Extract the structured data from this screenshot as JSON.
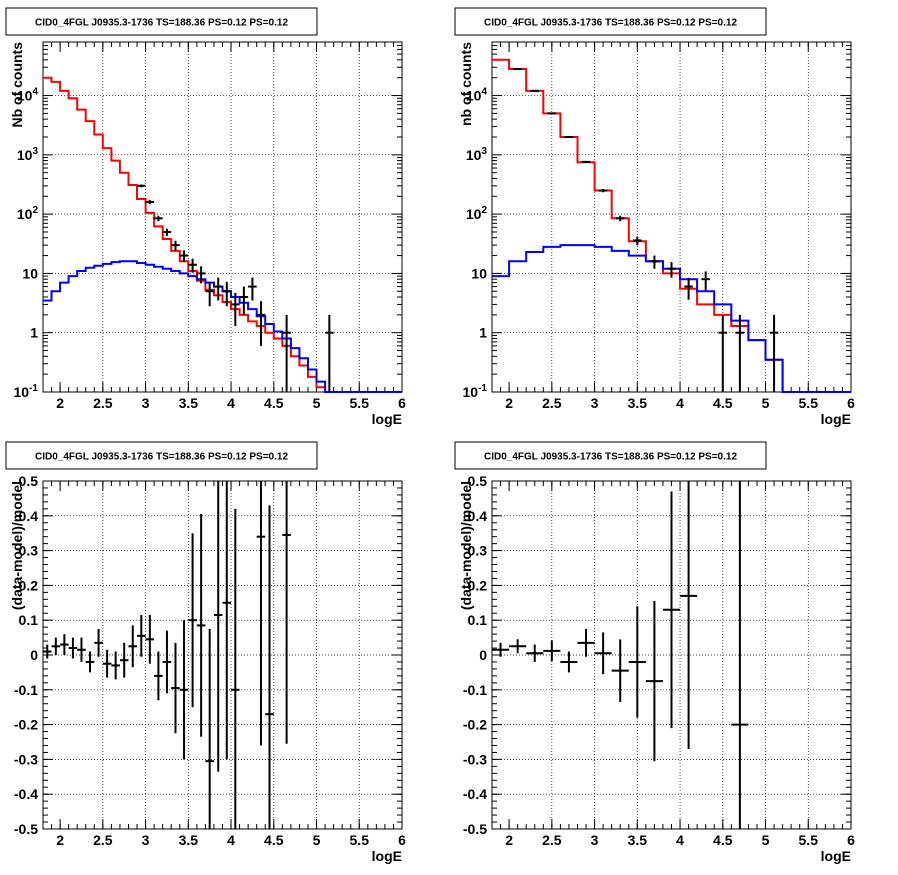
{
  "chart_data": [
    {
      "type": "line",
      "title": "CID0_4FGL J0935.3-1736 TS=188.36 PS=0.12 PS=0.12",
      "xlabel": "logE",
      "ylabel": "Nb of counts",
      "y_scale": "log",
      "xlim": [
        1.8,
        6.0
      ],
      "ylim": [
        0.1,
        80000
      ],
      "grid": true,
      "x_ticks": [
        "2",
        "2.5",
        "3",
        "3.5",
        "4",
        "4.5",
        "5",
        "5.5",
        "6"
      ],
      "y_ticks": [
        "10^{-1}",
        "1",
        "10",
        "10^{2}",
        "10^{3}",
        "10^{4}"
      ],
      "series": [
        {
          "color": "#ff0000",
          "kind": "step",
          "bin_width": 0.1,
          "x": [
            1.8,
            1.9,
            2.0,
            2.1,
            2.2,
            2.3,
            2.4,
            2.5,
            2.6,
            2.7,
            2.8,
            2.9,
            3.0,
            3.1,
            3.2,
            3.3,
            3.4,
            3.5,
            3.6,
            3.7,
            3.8,
            3.9,
            4.0,
            4.1,
            4.2,
            4.3,
            4.4,
            4.5,
            4.6,
            4.7,
            4.8,
            4.9,
            5.0,
            5.1,
            5.2,
            5.3,
            5.4,
            5.5,
            5.6,
            5.7,
            5.8,
            5.9
          ],
          "values": [
            20000,
            17000,
            12000,
            9000,
            5800,
            3700,
            2200,
            1300,
            800,
            500,
            310,
            180,
            105,
            62,
            38,
            24,
            16,
            11,
            7.5,
            5.3,
            4.3,
            3.3,
            2.5,
            2.0,
            1.55,
            1.3,
            1.0,
            0.8,
            0.6,
            0.4,
            0.28,
            0.18,
            0.12,
            0.1,
            0.1,
            0.1,
            0.1,
            0.1,
            0.1,
            0.1,
            0.1,
            0.1
          ]
        },
        {
          "color": "#0000ff",
          "kind": "step",
          "bin_width": 0.1,
          "x": [
            1.8,
            1.9,
            2.0,
            2.1,
            2.2,
            2.3,
            2.4,
            2.5,
            2.6,
            2.7,
            2.8,
            2.9,
            3.0,
            3.1,
            3.2,
            3.3,
            3.4,
            3.5,
            3.6,
            3.7,
            3.8,
            3.9,
            4.0,
            4.1,
            4.2,
            4.3,
            4.4,
            4.5,
            4.6,
            4.7,
            4.8,
            4.9,
            5.0,
            5.1,
            5.2,
            5.3,
            5.4,
            5.5,
            5.6,
            5.7,
            5.8,
            5.9
          ],
          "values": [
            3.5,
            5.0,
            7.0,
            9.0,
            11,
            12.5,
            13.5,
            14.5,
            15.5,
            16,
            16,
            15,
            14,
            13,
            12,
            11,
            10,
            9,
            8,
            7,
            6,
            5,
            4,
            3.2,
            2.5,
            1.9,
            1.4,
            1.05,
            0.8,
            0.55,
            0.37,
            0.24,
            0.15,
            0.1,
            0.1,
            0.1,
            0.1,
            0.1,
            0.1,
            0.1,
            0.1,
            0.1
          ]
        },
        {
          "color": "#000000",
          "kind": "points",
          "x": [
            2.95,
            3.05,
            3.15,
            3.25,
            3.35,
            3.45,
            3.55,
            3.65,
            3.75,
            3.85,
            3.95,
            4.05,
            4.15,
            4.25,
            4.35,
            4.65,
            5.15
          ],
          "values": [
            300,
            160,
            85,
            50,
            30,
            20,
            14,
            10,
            5,
            6,
            5,
            3,
            4,
            6,
            2,
            1,
            1
          ],
          "yerr": [
            17,
            13,
            9,
            7,
            5.5,
            4.5,
            3.7,
            3.2,
            2.2,
            2.5,
            2.2,
            1.7,
            2.0,
            2.5,
            1.4,
            1,
            1
          ]
        }
      ]
    },
    {
      "type": "line",
      "title": "CID0_4FGL J0935.3-1736 TS=188.36 PS=0.12 PS=0.12",
      "xlabel": "logE",
      "ylabel": "nb of counts",
      "y_scale": "log",
      "xlim": [
        1.8,
        6.0
      ],
      "ylim": [
        0.1,
        80000
      ],
      "grid": true,
      "x_ticks": [
        "2",
        "2.5",
        "3",
        "3.5",
        "4",
        "4.5",
        "5",
        "5.5",
        "6"
      ],
      "y_ticks": [
        "10^{-1}",
        "1",
        "10",
        "10^{2}",
        "10^{3}",
        "10^{4}"
      ],
      "series": [
        {
          "color": "#ff0000",
          "kind": "step",
          "bin_width": 0.2,
          "x": [
            1.8,
            2.0,
            2.2,
            2.4,
            2.6,
            2.8,
            3.0,
            3.2,
            3.4,
            3.6,
            3.8,
            4.0,
            4.2,
            4.4,
            4.6,
            4.8,
            5.0,
            5.2,
            5.4,
            5.6,
            5.8
          ],
          "values": [
            40000,
            28000,
            12000,
            5000,
            2000,
            750,
            250,
            85,
            35,
            16,
            10,
            5.5,
            3,
            2,
            1.3,
            0.75,
            0.35,
            0.1,
            0.1,
            0.1,
            0.1
          ]
        },
        {
          "color": "#0000ff",
          "kind": "step",
          "bin_width": 0.2,
          "x": [
            1.8,
            2.0,
            2.2,
            2.4,
            2.6,
            2.8,
            3.0,
            3.2,
            3.4,
            3.6,
            3.8,
            4.0,
            4.2,
            4.4,
            4.6,
            4.8,
            5.0,
            5.2,
            5.4,
            5.6,
            5.8
          ],
          "values": [
            9,
            16,
            23,
            28,
            30,
            30,
            28,
            24,
            20,
            16,
            12,
            8,
            5,
            3,
            1.6,
            0.75,
            0.35,
            0.1,
            0.1,
            0.1,
            0.1
          ]
        },
        {
          "color": "#000000",
          "kind": "points",
          "x": [
            2.1,
            2.3,
            2.5,
            2.7,
            2.9,
            3.1,
            3.3,
            3.5,
            3.7,
            3.9,
            4.1,
            4.3,
            4.5,
            4.7,
            5.1
          ],
          "values": [
            28000,
            12000,
            5000,
            2000,
            760,
            250,
            85,
            36,
            16,
            12,
            6,
            8,
            1,
            1,
            1
          ],
          "yerr": [
            170,
            110,
            70,
            45,
            28,
            16,
            9,
            6,
            4,
            3.5,
            2.4,
            2.8,
            1,
            1,
            1
          ]
        }
      ]
    },
    {
      "type": "scatter",
      "title": "CID0_4FGL J0935.3-1736 TS=188.36 PS=0.12 PS=0.12",
      "xlabel": "logE",
      "ylabel": "(data-model)/model",
      "xlim": [
        1.8,
        6.0
      ],
      "ylim": [
        -0.5,
        0.5
      ],
      "grid": true,
      "x_ticks": [
        "2",
        "2.5",
        "3",
        "3.5",
        "4",
        "4.5",
        "5",
        "5.5",
        "6"
      ],
      "y_ticks": [
        "-0.5",
        "-0.4",
        "-0.3",
        "-0.2",
        "-0.1",
        "0",
        "0.1",
        "0.2",
        "0.3",
        "0.4",
        "0.5"
      ],
      "series": [
        {
          "color": "#000000",
          "x_half_width": 0.05,
          "x": [
            1.85,
            1.95,
            2.05,
            2.15,
            2.25,
            2.35,
            2.45,
            2.55,
            2.65,
            2.75,
            2.85,
            2.95,
            3.05,
            3.15,
            3.25,
            3.35,
            3.45,
            3.55,
            3.65,
            3.75,
            3.85,
            3.95,
            4.05,
            4.35,
            4.45,
            4.65
          ],
          "values": [
            0.01,
            0.025,
            0.03,
            0.02,
            0.015,
            -0.02,
            0.035,
            -0.025,
            -0.03,
            -0.015,
            0.025,
            0.055,
            0.045,
            -0.06,
            -0.02,
            -0.095,
            -0.1,
            0.1,
            0.085,
            -0.305,
            0.115,
            0.15,
            -0.1,
            0.34,
            -0.17,
            0.345
          ],
          "yerr": [
            0.02,
            0.025,
            0.03,
            0.03,
            0.035,
            0.03,
            0.04,
            0.04,
            0.04,
            0.05,
            0.06,
            0.06,
            0.07,
            0.07,
            0.09,
            0.13,
            0.2,
            0.25,
            0.32,
            0.38,
            0.45,
            0.45,
            0.52,
            0.6,
            0.6,
            0.6
          ]
        }
      ]
    },
    {
      "type": "scatter",
      "title": "CID0_4FGL J0935.3-1736 TS=188.36 PS=0.12 PS=0.12",
      "xlabel": "logE",
      "ylabel": "(data-model)/model",
      "xlim": [
        1.8,
        6.0
      ],
      "ylim": [
        -0.5,
        0.5
      ],
      "grid": true,
      "x_ticks": [
        "2",
        "2.5",
        "3",
        "3.5",
        "4",
        "4.5",
        "5",
        "5.5",
        "6"
      ],
      "y_ticks": [
        "-0.5",
        "-0.4",
        "-0.3",
        "-0.2",
        "-0.1",
        "0",
        "0.1",
        "0.2",
        "0.3",
        "0.4",
        "0.5"
      ],
      "series": [
        {
          "color": "#000000",
          "x_half_width": 0.1,
          "x": [
            1.9,
            2.1,
            2.3,
            2.5,
            2.7,
            2.9,
            3.1,
            3.3,
            3.5,
            3.7,
            3.9,
            4.1,
            4.7
          ],
          "values": [
            0.015,
            0.025,
            0.005,
            0.012,
            -0.02,
            0.035,
            0.005,
            -0.045,
            -0.02,
            -0.075,
            0.13,
            0.17,
            -0.2
          ],
          "yerr": [
            0.02,
            0.02,
            0.025,
            0.03,
            0.03,
            0.04,
            0.06,
            0.09,
            0.16,
            0.23,
            0.34,
            0.44,
            0.8
          ]
        }
      ]
    }
  ]
}
